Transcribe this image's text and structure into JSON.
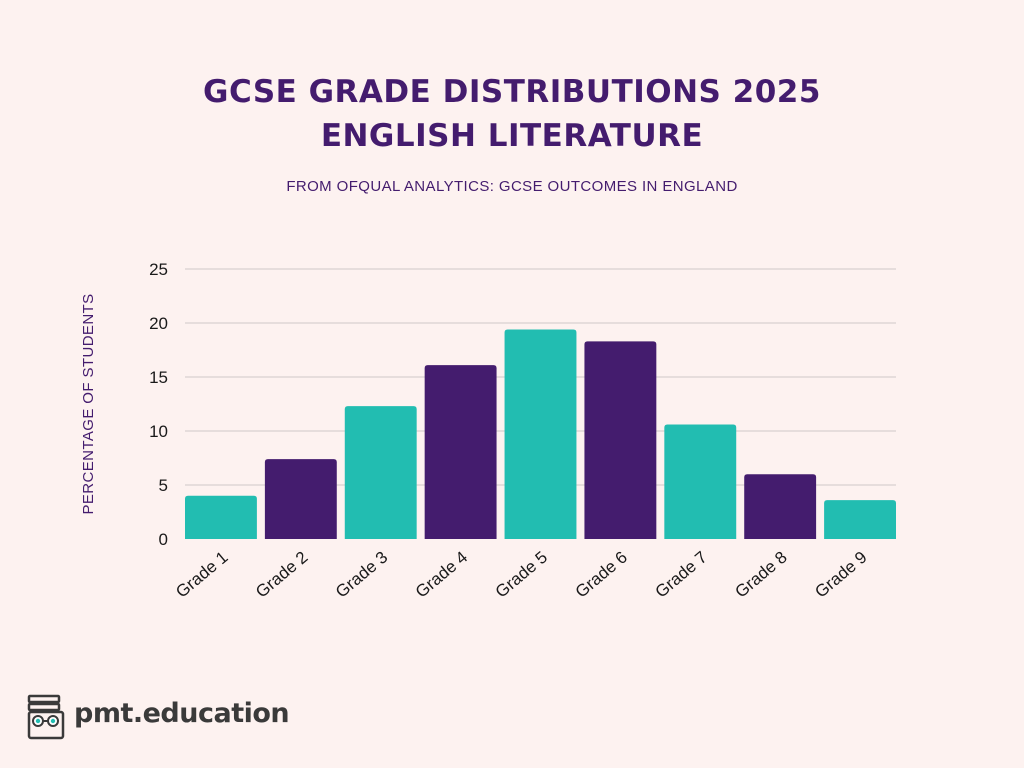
{
  "chart_data": {
    "type": "bar",
    "title_line1": "GCSE GRADE DISTRIBUTIONS 2025",
    "title_line2": "ENGLISH LITERATURE",
    "subtitle": "FROM OFQUAL ANALYTICS: GCSE OUTCOMES IN ENGLAND",
    "ylabel": "PERCENTAGE OF STUDENTS",
    "xlabel": "",
    "categories": [
      "Grade 1",
      "Grade 2",
      "Grade 3",
      "Grade 4",
      "Grade 5",
      "Grade 6",
      "Grade 7",
      "Grade 8",
      "Grade 9"
    ],
    "values": [
      4.0,
      7.4,
      12.3,
      16.1,
      19.4,
      18.3,
      10.6,
      6.0,
      3.6
    ],
    "ylim": [
      0,
      25
    ],
    "yticks": [
      0,
      5,
      10,
      15,
      20,
      25
    ],
    "grid": true,
    "bar_colors": [
      "#22bdb1",
      "#441c6e",
      "#22bdb1",
      "#441c6e",
      "#22bdb1",
      "#441c6e",
      "#22bdb1",
      "#441c6e",
      "#22bdb1"
    ]
  },
  "colors": {
    "background": "#fdf2f0",
    "title": "#441c6e",
    "teal": "#22bdb1",
    "purple": "#441c6e",
    "grid": "#cfc8c8"
  },
  "footer": {
    "brand": "pmt.education",
    "logo_icon": "books-glasses-logo-icon"
  }
}
